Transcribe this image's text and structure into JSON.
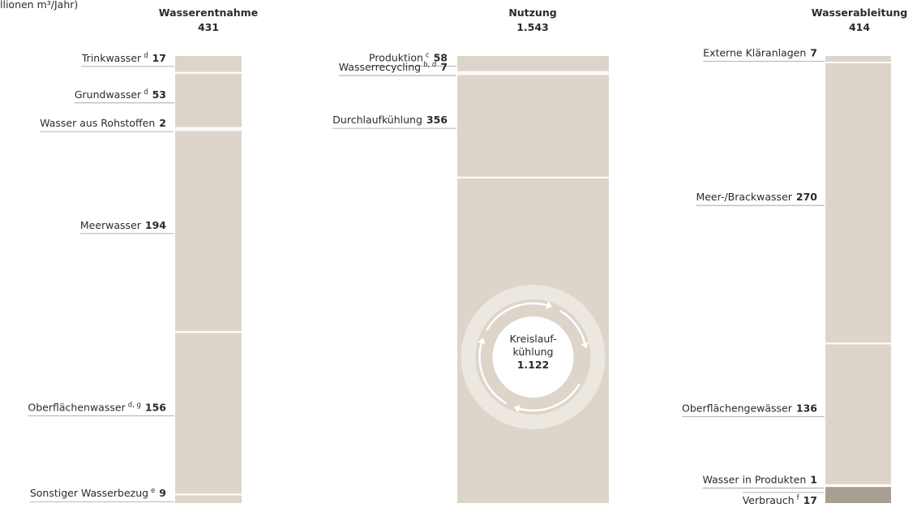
{
  "unit_note": "llionen m³/Jahr)",
  "bar_color": "#ddd5c9",
  "columns": [
    {
      "title": "Wasserentnahme",
      "total": 431,
      "items": [
        {
          "label": "Trinkwasser",
          "sup": "d",
          "value": 17
        },
        {
          "label": "Grundwasser",
          "sup": "d",
          "value": 53
        },
        {
          "label": "Wasser aus Rohstoffen",
          "value": 2
        },
        {
          "label": "Meerwasser",
          "value": 194
        },
        {
          "label": "Oberflächenwasser",
          "sup": "d, g",
          "value": 156
        },
        {
          "label": "Sonstiger Wasserbezug",
          "sup": "e",
          "value": 9
        }
      ]
    },
    {
      "title": "Nutzung",
      "total": {
        "value": 1543,
        "label": "1.543"
      },
      "items": [
        {
          "label": "Produktion",
          "sup": "c",
          "value": 58
        },
        {
          "label": "Wasserrecycling",
          "sup": "b, d",
          "value": 7
        },
        {
          "label": "Durchlaufkühlung",
          "value": 356
        },
        {
          "lines": [
            "Kreislauf-",
            "kühlung"
          ],
          "value": {
            "value": 1122,
            "label": "1.122"
          }
        }
      ]
    },
    {
      "title": "Wasserableitung",
      "total": 414,
      "items": [
        {
          "label": "Externe Kläranlagen",
          "value": 7
        },
        {
          "label": "Meer-/Brackwasser",
          "value": 270
        },
        {
          "label": "Oberflächengewässer",
          "value": 136
        },
        {
          "label": "Wasser in Produkten",
          "value": 1
        },
        {
          "label": "Verbrauch",
          "sup": "f",
          "value": 17,
          "color": "#a89e92"
        }
      ]
    }
  ]
}
